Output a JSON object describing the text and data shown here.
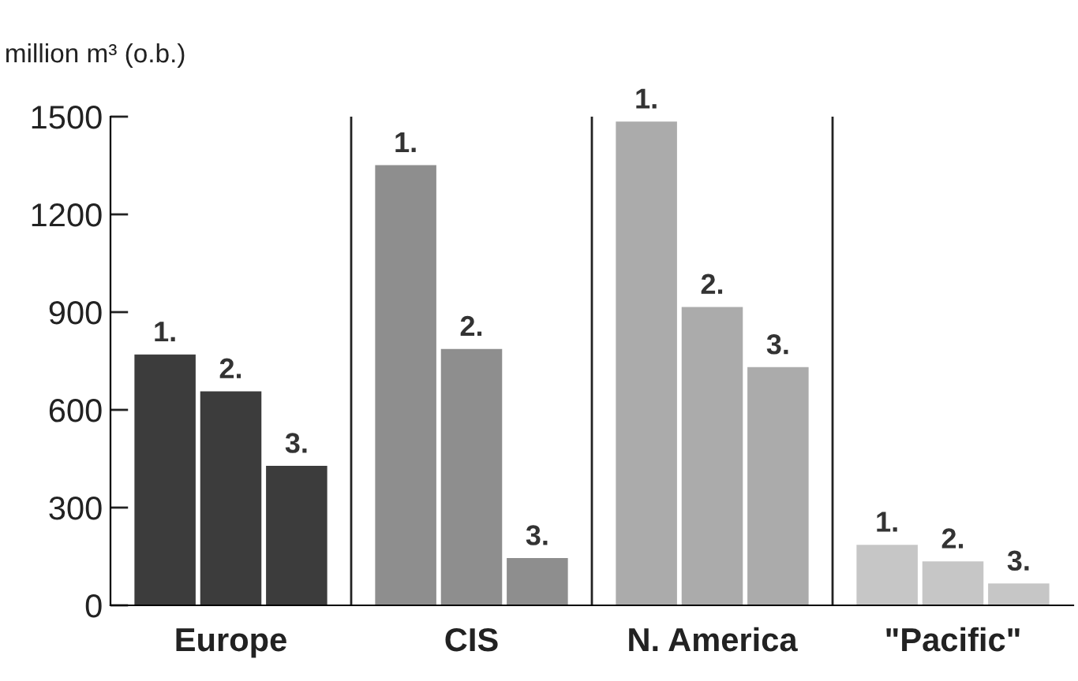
{
  "chart_data": {
    "type": "bar",
    "ylabel": "million m³ (o.b.)",
    "categories": [
      "Europe",
      "CIS",
      "N. America",
      "\"Pacific\""
    ],
    "series": [
      {
        "name": "1.",
        "colors": [
          "#3c3c3c",
          "#8e8e8e",
          "#ababab",
          "#c6c6c6"
        ],
        "values": [
          772,
          1353,
          1487,
          188
        ]
      },
      {
        "name": "2.",
        "colors": [
          "#3c3c3c",
          "#8e8e8e",
          "#ababab",
          "#c6c6c6"
        ],
        "values": [
          659,
          789,
          918,
          137
        ]
      },
      {
        "name": "3.",
        "colors": [
          "#3c3c3c",
          "#8e8e8e",
          "#ababab",
          "#c6c6c6"
        ],
        "values": [
          430,
          147,
          733,
          69
        ]
      }
    ],
    "ylim": [
      0,
      1500
    ],
    "yticks": [
      0,
      300,
      600,
      900,
      1200,
      1500
    ],
    "grid": false,
    "legend": false
  }
}
